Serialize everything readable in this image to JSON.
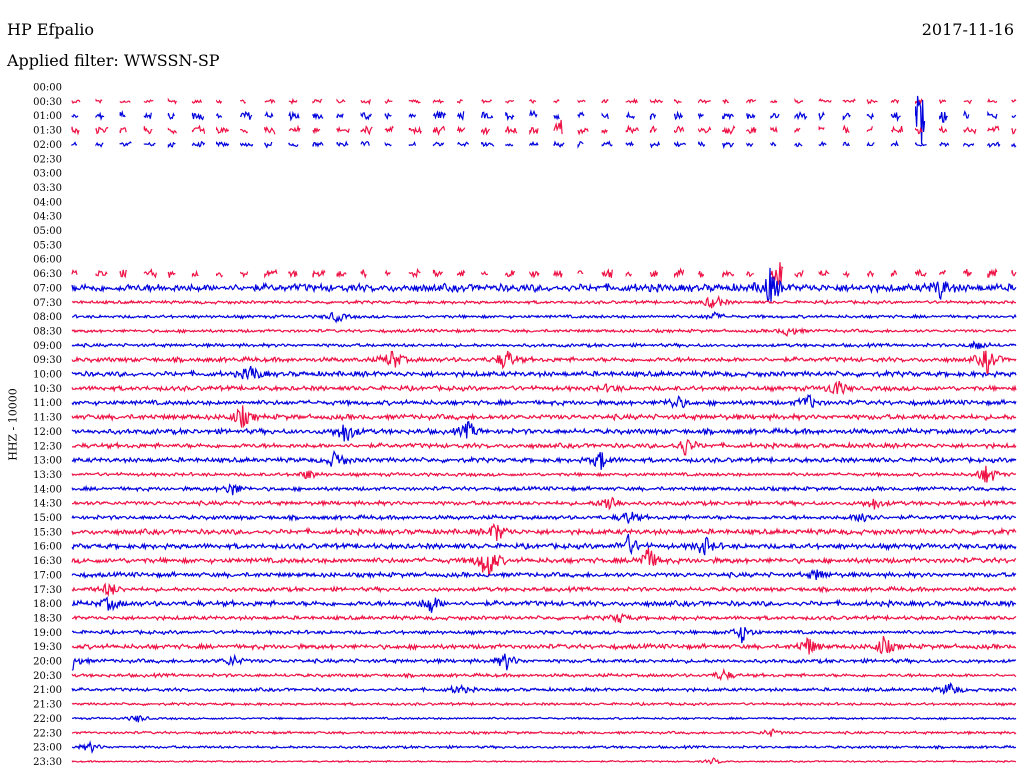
{
  "header": {
    "station": "HP Efpalio",
    "date": "2017-11-16",
    "filter_label": "Applied filter: WWSSN-SP"
  },
  "colors": {
    "trace_a": "#0000dd",
    "trace_b": "#ee1144",
    "text": "#000000",
    "background": "#ffffff"
  },
  "chart_data": {
    "type": "line",
    "ylabel": "HHZ - 10000",
    "xlabel": "",
    "grid": false,
    "legend": "none",
    "y_ticks": [
      "00:00",
      "00:30",
      "01:00",
      "01:30",
      "02:00",
      "02:30",
      "03:00",
      "03:30",
      "04:00",
      "04:30",
      "05:00",
      "05:30",
      "06:00",
      "06:30",
      "07:00",
      "07:30",
      "08:00",
      "08:30",
      "09:00",
      "09:30",
      "10:00",
      "10:30",
      "11:00",
      "11:30",
      "12:00",
      "12:30",
      "13:00",
      "13:30",
      "14:00",
      "14:30",
      "15:00",
      "15:30",
      "16:00",
      "16:30",
      "17:00",
      "17:30",
      "18:00",
      "18:30",
      "19:00",
      "19:30",
      "20:00",
      "20:30",
      "21:00",
      "21:30",
      "22:00",
      "22:30",
      "23:00",
      "23:30"
    ],
    "series": [
      {
        "time": "00:00",
        "status": "no-data",
        "events": []
      },
      {
        "time": "00:30",
        "status": "partial",
        "noise": 1.5,
        "events": []
      },
      {
        "time": "01:00",
        "status": "partial",
        "noise": 3,
        "events": [
          {
            "t": 0.9,
            "a": 30
          },
          {
            "t": 0.91,
            "a": 26
          }
        ]
      },
      {
        "time": "01:30",
        "status": "partial",
        "noise": 3,
        "events": [
          {
            "t": 0.52,
            "a": 12
          }
        ]
      },
      {
        "time": "02:00",
        "status": "partial",
        "noise": 2,
        "events": []
      },
      {
        "time": "02:30",
        "status": "no-data",
        "events": []
      },
      {
        "time": "03:00",
        "status": "no-data",
        "events": []
      },
      {
        "time": "03:30",
        "status": "no-data",
        "events": []
      },
      {
        "time": "04:00",
        "status": "no-data",
        "events": []
      },
      {
        "time": "04:30",
        "status": "no-data",
        "events": []
      },
      {
        "time": "05:00",
        "status": "no-data",
        "events": []
      },
      {
        "time": "05:30",
        "status": "no-data",
        "events": []
      },
      {
        "time": "06:00",
        "status": "no-data",
        "events": []
      },
      {
        "time": "06:30",
        "status": "partial",
        "noise": 3,
        "events": [
          {
            "t": 0.75,
            "a": 12
          },
          {
            "t": 0.99,
            "a": 8
          }
        ]
      },
      {
        "time": "07:00",
        "status": "full",
        "noise": 3,
        "events": [
          {
            "t": 0.74,
            "a": 18
          },
          {
            "t": 0.92,
            "a": 10
          }
        ]
      },
      {
        "time": "07:30",
        "status": "full",
        "noise": 1.2,
        "events": [
          {
            "t": 0.68,
            "a": 9
          }
        ]
      },
      {
        "time": "08:00",
        "status": "full",
        "noise": 1.2,
        "events": [
          {
            "t": 0.28,
            "a": 6
          },
          {
            "t": 0.68,
            "a": 4
          }
        ]
      },
      {
        "time": "08:30",
        "status": "full",
        "noise": 1.2,
        "events": [
          {
            "t": 0.76,
            "a": 6
          }
        ]
      },
      {
        "time": "09:00",
        "status": "full",
        "noise": 1.3,
        "events": [
          {
            "t": 0.96,
            "a": 5
          }
        ]
      },
      {
        "time": "09:30",
        "status": "full",
        "noise": 1.8,
        "events": [
          {
            "t": 0.34,
            "a": 11
          },
          {
            "t": 0.46,
            "a": 12
          },
          {
            "t": 0.97,
            "a": 14
          }
        ]
      },
      {
        "time": "10:00",
        "status": "full",
        "noise": 2,
        "events": [
          {
            "t": 0.19,
            "a": 9
          }
        ]
      },
      {
        "time": "10:30",
        "status": "full",
        "noise": 1.8,
        "events": [
          {
            "t": 0.81,
            "a": 9
          },
          {
            "t": 0.57,
            "a": 4
          }
        ]
      },
      {
        "time": "11:00",
        "status": "full",
        "noise": 1.8,
        "events": [
          {
            "t": 0.64,
            "a": 8
          },
          {
            "t": 0.78,
            "a": 8
          }
        ]
      },
      {
        "time": "11:30",
        "status": "full",
        "noise": 2,
        "events": [
          {
            "t": 0.18,
            "a": 11
          }
        ]
      },
      {
        "time": "12:00",
        "status": "full",
        "noise": 2,
        "events": [
          {
            "t": 0.29,
            "a": 13
          },
          {
            "t": 0.42,
            "a": 9
          }
        ]
      },
      {
        "time": "12:30",
        "status": "full",
        "noise": 1.8,
        "events": [
          {
            "t": 0.65,
            "a": 10
          }
        ]
      },
      {
        "time": "13:00",
        "status": "full",
        "noise": 1.8,
        "events": [
          {
            "t": 0.28,
            "a": 10
          },
          {
            "t": 0.56,
            "a": 10
          }
        ]
      },
      {
        "time": "13:30",
        "status": "full",
        "noise": 1.3,
        "events": [
          {
            "t": 0.25,
            "a": 5
          },
          {
            "t": 0.97,
            "a": 12
          }
        ]
      },
      {
        "time": "14:00",
        "status": "full",
        "noise": 1.5,
        "events": [
          {
            "t": 0.17,
            "a": 7
          }
        ]
      },
      {
        "time": "14:30",
        "status": "full",
        "noise": 1.6,
        "events": [
          {
            "t": 0.57,
            "a": 10
          },
          {
            "t": 0.85,
            "a": 6
          }
        ]
      },
      {
        "time": "15:00",
        "status": "full",
        "noise": 1.6,
        "events": [
          {
            "t": 0.59,
            "a": 7
          },
          {
            "t": 0.84,
            "a": 8
          }
        ]
      },
      {
        "time": "15:30",
        "status": "full",
        "noise": 2,
        "events": [
          {
            "t": 0.45,
            "a": 10
          }
        ]
      },
      {
        "time": "16:00",
        "status": "full",
        "noise": 2,
        "events": [
          {
            "t": 0.59,
            "a": 11
          },
          {
            "t": 0.67,
            "a": 10
          }
        ]
      },
      {
        "time": "16:30",
        "status": "full",
        "noise": 2,
        "events": [
          {
            "t": 0.44,
            "a": 22
          },
          {
            "t": 0.61,
            "a": 14
          }
        ]
      },
      {
        "time": "17:00",
        "status": "full",
        "noise": 1.8,
        "events": [
          {
            "t": 0.79,
            "a": 6
          }
        ]
      },
      {
        "time": "17:30",
        "status": "full",
        "noise": 1.6,
        "events": [
          {
            "t": 0.04,
            "a": 8
          }
        ]
      },
      {
        "time": "18:00",
        "status": "full",
        "noise": 2,
        "events": [
          {
            "t": 0.04,
            "a": 7
          },
          {
            "t": 0.38,
            "a": 10
          }
        ]
      },
      {
        "time": "18:30",
        "status": "full",
        "noise": 1.5,
        "events": [
          {
            "t": 0.58,
            "a": 5
          }
        ]
      },
      {
        "time": "19:00",
        "status": "full",
        "noise": 1.4,
        "events": [
          {
            "t": 0.71,
            "a": 10
          }
        ]
      },
      {
        "time": "19:30",
        "status": "full",
        "noise": 1.8,
        "events": [
          {
            "t": 0.78,
            "a": 10
          },
          {
            "t": 0.86,
            "a": 10
          }
        ]
      },
      {
        "time": "20:00",
        "status": "full",
        "noise": 1.5,
        "events": [
          {
            "t": 0.0,
            "a": 9
          },
          {
            "t": 0.17,
            "a": 6
          },
          {
            "t": 0.46,
            "a": 9
          }
        ]
      },
      {
        "time": "20:30",
        "status": "full",
        "noise": 1.3,
        "events": [
          {
            "t": 0.69,
            "a": 6
          }
        ]
      },
      {
        "time": "21:00",
        "status": "full",
        "noise": 1.3,
        "events": [
          {
            "t": 0.41,
            "a": 5
          },
          {
            "t": 0.93,
            "a": 8
          }
        ]
      },
      {
        "time": "21:30",
        "status": "full",
        "noise": 1,
        "events": []
      },
      {
        "time": "22:00",
        "status": "full",
        "noise": 0.8,
        "events": [
          {
            "t": 0.07,
            "a": 4
          }
        ]
      },
      {
        "time": "22:30",
        "status": "full",
        "noise": 1,
        "events": [
          {
            "t": 0.74,
            "a": 4
          }
        ]
      },
      {
        "time": "23:00",
        "status": "full",
        "noise": 1,
        "events": [
          {
            "t": 0.02,
            "a": 5
          }
        ]
      },
      {
        "time": "23:30",
        "status": "full",
        "noise": 0.6,
        "events": [
          {
            "t": 0.68,
            "a": 3
          }
        ]
      }
    ]
  }
}
